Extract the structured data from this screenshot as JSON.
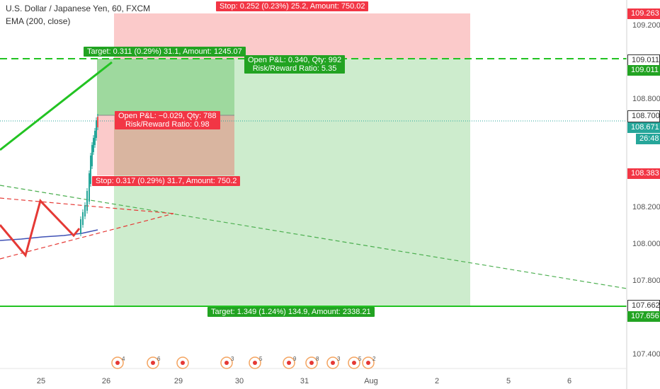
{
  "legend": {
    "symbol": "U.S. Dollar / Japanese Yen, 60, FXCM",
    "indicator": "EMA (200, close)"
  },
  "positions": {
    "short": {
      "stop_label": "Stop: 0.252 (0.23%) 25.2, Amount: 750.02",
      "pnl_label": "Open P&L: 0.340, Qty: 992",
      "rr_label": "Risk/Reward Ratio: 5.35",
      "target_label": "Target: 1.349 (1.24%) 134.9, Amount: 2338.21"
    },
    "long": {
      "target_label": "Target: 0.311 (0.29%) 31.1, Amount: 1245.07",
      "pnl_label": "Open P&L: −0.029, Qty: 788",
      "rr_label": "Risk/Reward Ratio: 0.98",
      "stop_label": "Stop: 0.317 (0.29%) 31.7, Amount: 750.2"
    }
  },
  "price_axis": {
    "ticks": [
      "109.200",
      "108.800",
      "108.200",
      "108.000",
      "107.800",
      "107.400"
    ],
    "boxes": [
      {
        "text": "109.263",
        "color": "#f23645"
      },
      {
        "text": "109.011",
        "color": "#ffffff"
      },
      {
        "text": "109.011",
        "color": "#22a322"
      },
      {
        "text": "108.700",
        "color": "#ffffff"
      },
      {
        "text": "108.671",
        "color": "#26a69a"
      },
      {
        "text": "26:48",
        "color": "#26a69a"
      },
      {
        "text": "108.383",
        "color": "#f23645"
      },
      {
        "text": "107.662",
        "color": "#ffffff"
      },
      {
        "text": "107.656",
        "color": "#22a322"
      }
    ]
  },
  "time_axis": {
    "ticks": [
      "25",
      "26",
      "29",
      "30",
      "31",
      "Aug",
      "2",
      "5",
      "6"
    ]
  },
  "events": {
    "labels": [
      "4",
      "6",
      "",
      "3",
      "5",
      "9",
      "8",
      "3",
      "5",
      "2"
    ]
  },
  "colors": {
    "profit_zone": "#cdeccd",
    "profit_zone_dark": "#9ed99e",
    "loss_zone": "#fbcaca",
    "loss_zone_brown": "#d9b5a0",
    "green_line": "#22c322",
    "red_dashed": "#e53935",
    "green_dashed": "#4caf50",
    "ema": "#3f51b5"
  }
}
